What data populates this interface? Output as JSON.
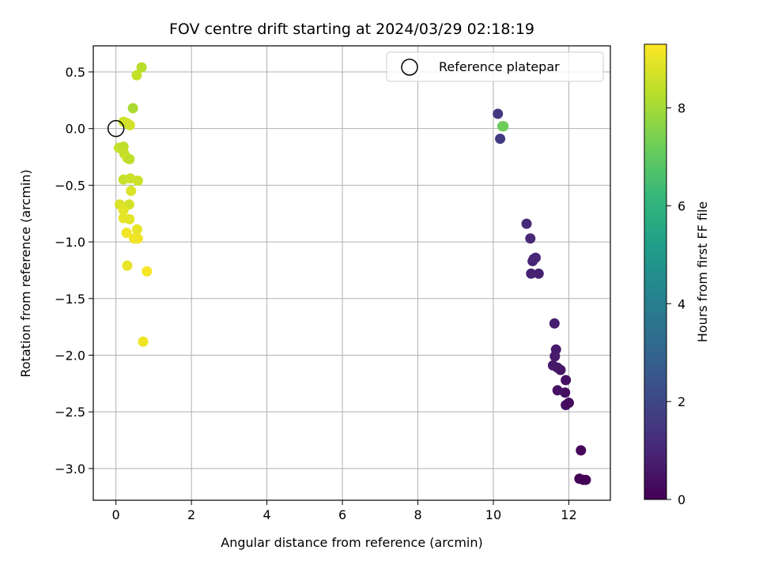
{
  "chart_data": {
    "type": "scatter",
    "title": "FOV centre drift starting at 2024/03/29 02:18:19",
    "xlabel": "Angular distance from reference (arcmin)",
    "ylabel": "Rotation from reference (arcmin)",
    "xlim": [
      -0.6,
      13.1
    ],
    "ylim": [
      -3.28,
      0.73
    ],
    "xticks": [
      0,
      2,
      4,
      6,
      8,
      10,
      12
    ],
    "yticks": [
      0.5,
      0.0,
      -0.5,
      -1.0,
      -1.5,
      -2.0,
      -2.5,
      -3.0
    ],
    "xtick_labels": [
      "0",
      "2",
      "4",
      "6",
      "8",
      "10",
      "12"
    ],
    "ytick_labels": [
      "0.5",
      "0.0",
      "−0.5",
      "−1.0",
      "−1.5",
      "−2.0",
      "−2.5",
      "−3.0"
    ],
    "grid": true,
    "legend": {
      "placement": "top-right",
      "entries": [
        "Reference platepar"
      ]
    },
    "reference_point": {
      "x": 0.0,
      "y": 0.0
    },
    "colorbar": {
      "label": "Hours from first FF file",
      "min": 0,
      "max": 9.3,
      "ticks": [
        0,
        2,
        4,
        6,
        8
      ],
      "tick_labels": [
        "0",
        "2",
        "4",
        "6",
        "8"
      ],
      "colormap": [
        "#440154",
        "#482878",
        "#3e4989",
        "#31688e",
        "#26828e",
        "#1f9e89",
        "#35b779",
        "#6ece58",
        "#b5de2b",
        "#fde725"
      ]
    },
    "points": [
      {
        "x": 12.32,
        "y": -2.84,
        "t": 0.15
      },
      {
        "x": 12.28,
        "y": -3.09,
        "t": 0.05
      },
      {
        "x": 12.38,
        "y": -3.1,
        "t": 0.1
      },
      {
        "x": 12.45,
        "y": -3.1,
        "t": 0.1
      },
      {
        "x": 11.92,
        "y": -2.44,
        "t": 0.35
      },
      {
        "x": 12.0,
        "y": -2.42,
        "t": 0.3
      },
      {
        "x": 11.9,
        "y": -2.33,
        "t": 0.35
      },
      {
        "x": 11.92,
        "y": -2.22,
        "t": 0.4
      },
      {
        "x": 11.7,
        "y": -2.31,
        "t": 0.45
      },
      {
        "x": 11.78,
        "y": -2.13,
        "t": 0.5
      },
      {
        "x": 11.7,
        "y": -2.11,
        "t": 0.55
      },
      {
        "x": 11.58,
        "y": -2.09,
        "t": 0.6
      },
      {
        "x": 11.63,
        "y": -2.01,
        "t": 0.65
      },
      {
        "x": 11.66,
        "y": -1.95,
        "t": 0.7
      },
      {
        "x": 11.62,
        "y": -1.72,
        "t": 0.75
      },
      {
        "x": 11.2,
        "y": -1.28,
        "t": 0.85
      },
      {
        "x": 11.0,
        "y": -1.28,
        "t": 0.9
      },
      {
        "x": 11.04,
        "y": -1.17,
        "t": 0.95
      },
      {
        "x": 11.07,
        "y": -1.15,
        "t": 1.0
      },
      {
        "x": 11.12,
        "y": -1.14,
        "t": 1.0
      },
      {
        "x": 10.98,
        "y": -0.97,
        "t": 1.05
      },
      {
        "x": 10.88,
        "y": -0.84,
        "t": 1.1
      },
      {
        "x": 10.12,
        "y": 0.13,
        "t": 1.5
      },
      {
        "x": 10.18,
        "y": -0.09,
        "t": 1.6
      },
      {
        "x": 10.24,
        "y": 0.02,
        "t": 7.1
      },
      {
        "x": 10.27,
        "y": 0.02,
        "t": 7.2
      },
      {
        "x": 0.68,
        "y": 0.54,
        "t": 8.3
      },
      {
        "x": 0.55,
        "y": 0.47,
        "t": 8.5
      },
      {
        "x": 0.45,
        "y": 0.18,
        "t": 8.1
      },
      {
        "x": 0.2,
        "y": 0.06,
        "t": 8.6
      },
      {
        "x": 0.28,
        "y": 0.05,
        "t": 8.7
      },
      {
        "x": 0.37,
        "y": 0.03,
        "t": 8.7
      },
      {
        "x": 0.08,
        "y": -0.17,
        "t": 8.5
      },
      {
        "x": 0.2,
        "y": -0.16,
        "t": 8.4
      },
      {
        "x": 0.22,
        "y": -0.22,
        "t": 8.5
      },
      {
        "x": 0.3,
        "y": -0.26,
        "t": 8.6
      },
      {
        "x": 0.36,
        "y": -0.27,
        "t": 8.4
      },
      {
        "x": 0.2,
        "y": -0.45,
        "t": 8.5
      },
      {
        "x": 0.38,
        "y": -0.44,
        "t": 8.6
      },
      {
        "x": 0.58,
        "y": -0.46,
        "t": 8.6
      },
      {
        "x": 0.4,
        "y": -0.55,
        "t": 8.8
      },
      {
        "x": 0.1,
        "y": -0.67,
        "t": 8.8
      },
      {
        "x": 0.35,
        "y": -0.67,
        "t": 8.7
      },
      {
        "x": 0.2,
        "y": -0.72,
        "t": 8.9
      },
      {
        "x": 0.2,
        "y": -0.79,
        "t": 9.0
      },
      {
        "x": 0.36,
        "y": -0.8,
        "t": 8.9
      },
      {
        "x": 0.56,
        "y": -0.89,
        "t": 9.0
      },
      {
        "x": 0.28,
        "y": -0.92,
        "t": 9.1
      },
      {
        "x": 0.48,
        "y": -0.97,
        "t": 9.1
      },
      {
        "x": 0.58,
        "y": -0.97,
        "t": 9.1
      },
      {
        "x": 0.3,
        "y": -1.21,
        "t": 9.0
      },
      {
        "x": 0.82,
        "y": -1.26,
        "t": 9.2
      },
      {
        "x": 0.72,
        "y": -1.88,
        "t": 9.1
      }
    ]
  }
}
